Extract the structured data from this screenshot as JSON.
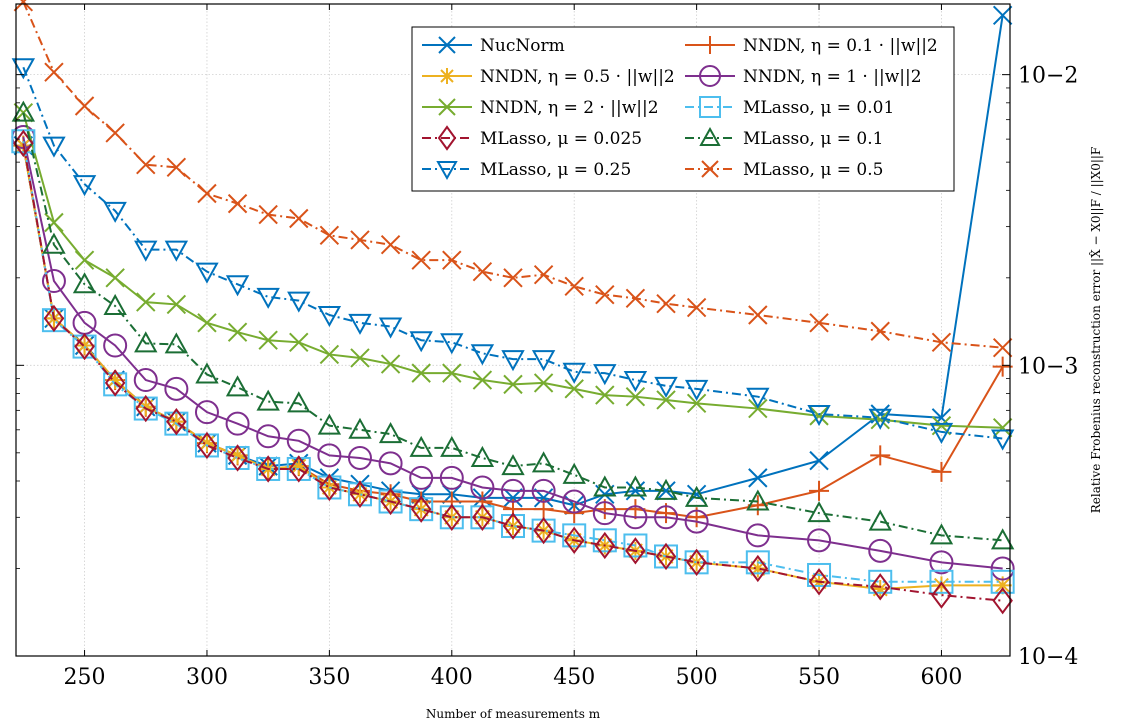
{
  "chart_data": {
    "type": "line",
    "xlabel": "Number of measurements m",
    "ylabel": "Relative Frobenius reconstruction error ||X̂ − X0||F / ||X0||F",
    "x_ticks": [
      250,
      300,
      350,
      400,
      450,
      500,
      550,
      600
    ],
    "y_ticks": [
      "10−4",
      "10−3",
      "10−2"
    ],
    "y_tick_values": [
      0.0001,
      0.001,
      0.01
    ],
    "xlim": [
      222,
      628
    ],
    "ylim": [
      0.0001,
      0.0175
    ],
    "y_scale": "log",
    "legend_position": "top-right",
    "series": [
      {
        "name": "NucNorm",
        "color": "#0072bd",
        "marker": "x",
        "dash": "solid",
        "x": [
          225,
          237.5,
          250,
          262.5,
          275,
          287.5,
          300,
          312.5,
          325,
          337.5,
          350,
          362.5,
          375,
          387.5,
          400,
          412.5,
          425,
          437.5,
          450,
          462.5,
          475,
          487.5,
          500,
          525,
          550,
          575,
          600,
          625
        ],
        "y": [
          0.0057,
          0.00145,
          0.00117,
          0.00089,
          0.00072,
          0.00064,
          0.00054,
          0.00049,
          0.00045,
          0.00046,
          0.00041,
          0.00039,
          0.00037,
          0.00036,
          0.00036,
          0.00035,
          0.00035,
          0.00035,
          0.00033,
          0.00036,
          0.00037,
          0.00037,
          0.00036,
          0.00041,
          0.00047,
          0.00068,
          0.00066,
          0.016
        ]
      },
      {
        "name": "NNDN, η = 0.1 · ||w||2",
        "color": "#d95319",
        "marker": "+",
        "dash": "solid",
        "x": [
          225,
          237.5,
          250,
          262.5,
          275,
          287.5,
          300,
          312.5,
          325,
          337.5,
          350,
          362.5,
          375,
          387.5,
          400,
          412.5,
          425,
          437.5,
          450,
          462.5,
          475,
          487.5,
          500,
          525,
          550,
          575,
          600,
          625
        ],
        "y": [
          0.0057,
          0.00145,
          0.00117,
          0.00089,
          0.00072,
          0.00064,
          0.00054,
          0.00049,
          0.00044,
          0.00045,
          0.00039,
          0.00037,
          0.00036,
          0.00034,
          0.00034,
          0.00034,
          0.00032,
          0.00032,
          0.00031,
          0.00032,
          0.00032,
          0.00031,
          0.0003,
          0.00033,
          0.00037,
          0.00049,
          0.00043,
          0.00099
        ]
      },
      {
        "name": "NNDN, η = 0.5 · ||w||2",
        "color": "#edb120",
        "marker": "asterisk",
        "dash": "solid",
        "x": [
          225,
          237.5,
          250,
          262.5,
          275,
          287.5,
          300,
          312.5,
          325,
          337.5,
          350,
          362.5,
          375,
          387.5,
          400,
          412.5,
          425,
          437.5,
          450,
          462.5,
          475,
          487.5,
          500,
          525,
          550,
          575,
          600,
          625
        ],
        "y": [
          0.0057,
          0.00145,
          0.00117,
          0.00089,
          0.00072,
          0.00064,
          0.00054,
          0.00049,
          0.00044,
          0.00045,
          0.00038,
          0.00036,
          0.00034,
          0.00032,
          0.0003,
          0.0003,
          0.00028,
          0.00027,
          0.00025,
          0.00024,
          0.00023,
          0.00022,
          0.00021,
          0.0002,
          0.00018,
          0.00017,
          0.000175,
          0.000175
        ]
      },
      {
        "name": "NNDN, η = 1 · ||w||2",
        "color": "#7e2f8e",
        "marker": "circle",
        "dash": "solid",
        "x": [
          225,
          237.5,
          250,
          262.5,
          275,
          287.5,
          300,
          312.5,
          325,
          337.5,
          350,
          362.5,
          375,
          387.5,
          400,
          412.5,
          425,
          437.5,
          450,
          462.5,
          475,
          487.5,
          500,
          525,
          550,
          575,
          600,
          625
        ],
        "y": [
          0.0061,
          0.00195,
          0.0014,
          0.00117,
          0.00089,
          0.00083,
          0.00069,
          0.00063,
          0.00057,
          0.00055,
          0.00049,
          0.00048,
          0.00046,
          0.00041,
          0.00041,
          0.00038,
          0.00037,
          0.00037,
          0.00034,
          0.00031,
          0.0003,
          0.0003,
          0.00029,
          0.00026,
          0.00025,
          0.00023,
          0.00021,
          0.0002
        ]
      },
      {
        "name": "NNDN, η = 2 · ||w||2",
        "color": "#77ac30",
        "marker": "x",
        "dash": "solid",
        "x": [
          225,
          237.5,
          250,
          262.5,
          275,
          287.5,
          300,
          312.5,
          325,
          337.5,
          350,
          362.5,
          375,
          387.5,
          400,
          412.5,
          425,
          437.5,
          450,
          462.5,
          475,
          487.5,
          500,
          525,
          550,
          575,
          600,
          625
        ],
        "y": [
          0.0074,
          0.0031,
          0.0023,
          0.002,
          0.00165,
          0.00162,
          0.0014,
          0.0013,
          0.00122,
          0.0012,
          0.00109,
          0.00106,
          0.00101,
          0.00094,
          0.00094,
          0.00089,
          0.00086,
          0.00087,
          0.00083,
          0.00079,
          0.00078,
          0.00076,
          0.00074,
          0.00071,
          0.00067,
          0.00065,
          0.00062,
          0.00061
        ]
      },
      {
        "name": "MLasso, μ = 0.01",
        "color": "#4dbeee",
        "marker": "square",
        "dash": "dashdot",
        "x": [
          225,
          237.5,
          250,
          262.5,
          275,
          287.5,
          300,
          312.5,
          325,
          337.5,
          350,
          362.5,
          375,
          387.5,
          400,
          412.5,
          425,
          437.5,
          450,
          462.5,
          475,
          487.5,
          500,
          525,
          550,
          575,
          600,
          625
        ],
        "y": [
          0.0059,
          0.00143,
          0.00116,
          0.00086,
          0.00071,
          0.00063,
          0.00053,
          0.00048,
          0.00044,
          0.00044,
          0.00038,
          0.00036,
          0.00034,
          0.00032,
          0.0003,
          0.0003,
          0.00028,
          0.00027,
          0.00026,
          0.00025,
          0.00024,
          0.00022,
          0.00021,
          0.00021,
          0.00019,
          0.00018,
          0.00018,
          0.00018
        ]
      },
      {
        "name": "MLasso, μ = 0.025",
        "color": "#a2142f",
        "marker": "diamond",
        "dash": "dashdot",
        "x": [
          225,
          237.5,
          250,
          262.5,
          275,
          287.5,
          300,
          312.5,
          325,
          337.5,
          350,
          362.5,
          375,
          387.5,
          400,
          412.5,
          425,
          437.5,
          450,
          462.5,
          475,
          487.5,
          500,
          525,
          550,
          575,
          600,
          625
        ],
        "y": [
          0.0058,
          0.00145,
          0.00116,
          0.00087,
          0.00071,
          0.00064,
          0.00053,
          0.00048,
          0.00044,
          0.00044,
          0.00038,
          0.00036,
          0.00034,
          0.00032,
          0.0003,
          0.0003,
          0.00028,
          0.00027,
          0.00025,
          0.00024,
          0.00023,
          0.00022,
          0.00021,
          0.0002,
          0.00018,
          0.000173,
          0.000162,
          0.000155
        ]
      },
      {
        "name": "MLasso, μ = 0.1",
        "color": "#1b6e35",
        "marker": "triangle-up",
        "dash": "dashdot",
        "x": [
          225,
          237.5,
          250,
          262.5,
          275,
          287.5,
          300,
          312.5,
          325,
          337.5,
          350,
          362.5,
          375,
          387.5,
          400,
          412.5,
          425,
          437.5,
          450,
          462.5,
          475,
          487.5,
          500,
          525,
          550,
          575,
          600,
          625
        ],
        "y": [
          0.0074,
          0.0026,
          0.0019,
          0.0016,
          0.00119,
          0.00118,
          0.00093,
          0.00084,
          0.00075,
          0.00074,
          0.00062,
          0.0006,
          0.00058,
          0.00052,
          0.00052,
          0.00048,
          0.00045,
          0.00046,
          0.00042,
          0.00038,
          0.00038,
          0.00037,
          0.00035,
          0.00034,
          0.00031,
          0.00029,
          0.00026,
          0.00025
        ]
      },
      {
        "name": "MLasso, μ = 0.25",
        "color": "#0072bd",
        "marker": "triangle-down",
        "dash": "dashdot",
        "x": [
          225,
          237.5,
          250,
          262.5,
          275,
          287.5,
          300,
          312.5,
          325,
          337.5,
          350,
          362.5,
          375,
          387.5,
          400,
          412.5,
          425,
          437.5,
          450,
          462.5,
          475,
          487.5,
          500,
          525,
          550,
          575,
          600,
          625
        ],
        "y": [
          0.0106,
          0.0057,
          0.0042,
          0.0034,
          0.0025,
          0.0025,
          0.0021,
          0.0019,
          0.00172,
          0.00167,
          0.00149,
          0.0014,
          0.00136,
          0.00122,
          0.0012,
          0.0011,
          0.00105,
          0.00105,
          0.00095,
          0.00094,
          0.00089,
          0.00085,
          0.00083,
          0.00078,
          0.00068,
          0.00066,
          0.00059,
          0.00056
        ]
      },
      {
        "name": "MLasso, μ = 0.5",
        "color": "#d95319",
        "marker": "x",
        "dash": "dashdot",
        "x": [
          225,
          237.5,
          250,
          262.5,
          275,
          287.5,
          300,
          312.5,
          325,
          337.5,
          350,
          362.5,
          375,
          387.5,
          400,
          412.5,
          425,
          437.5,
          450,
          462.5,
          475,
          487.5,
          500,
          525,
          550,
          575,
          600,
          625
        ],
        "y": [
          0.0178,
          0.0102,
          0.0078,
          0.0063,
          0.0049,
          0.0048,
          0.0039,
          0.0036,
          0.0033,
          0.0032,
          0.0028,
          0.0027,
          0.0026,
          0.0023,
          0.0023,
          0.0021,
          0.002,
          0.00205,
          0.00187,
          0.00175,
          0.0017,
          0.00163,
          0.00158,
          0.00149,
          0.0014,
          0.00131,
          0.0012,
          0.00115
        ]
      }
    ]
  }
}
